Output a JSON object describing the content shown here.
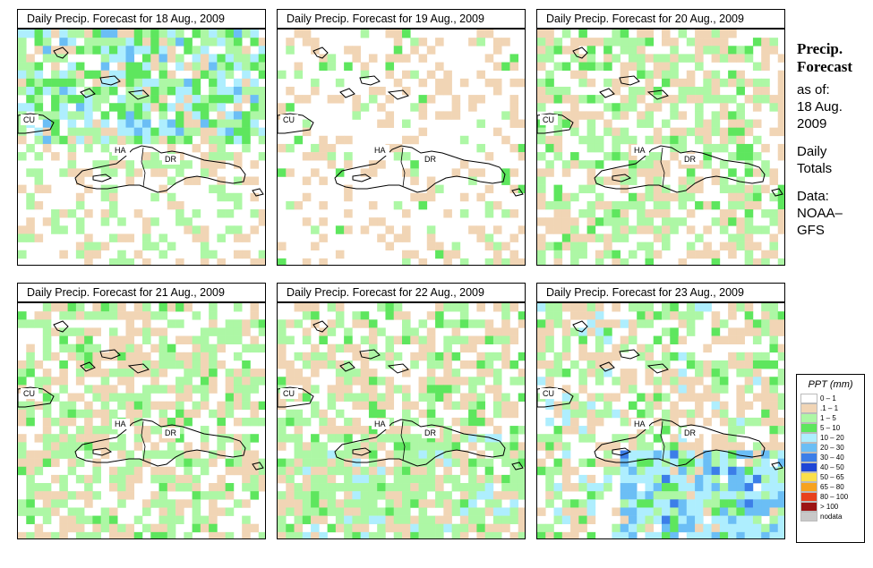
{
  "panels": [
    {
      "title": "Daily Precip. Forecast for  18 Aug., 2009",
      "seed": 18,
      "profile": "wet_north"
    },
    {
      "title": "Daily Precip. Forecast for  19 Aug., 2009",
      "seed": 19,
      "profile": "dry"
    },
    {
      "title": "Daily Precip. Forecast for  20 Aug., 2009",
      "seed": 20,
      "profile": "light"
    },
    {
      "title": "Daily Precip. Forecast for  21 Aug., 2009",
      "seed": 21,
      "profile": "light"
    },
    {
      "title": "Daily Precip. Forecast for  22 Aug., 2009",
      "seed": 22,
      "profile": "widespread"
    },
    {
      "title": "Daily Precip. Forecast for  23 Aug., 2009",
      "seed": 23,
      "profile": "wet_south"
    }
  ],
  "map_labels": {
    "cu": "CU",
    "ha": "HA",
    "dr": "DR"
  },
  "side": {
    "heading1": "Precip.",
    "heading2": "Forecast",
    "asof": "as of:",
    "date1": "18 Aug.",
    "date2": "2009",
    "type1": "Daily",
    "type2": "Totals",
    "data1": "Data:",
    "data2": "NOAA–",
    "data3": "GFS"
  },
  "legend": {
    "title": "PPT (mm)",
    "items": [
      {
        "label": "0 – 1",
        "color": "#ffffff"
      },
      {
        "label": ".1 – 1",
        "color": "#f1d5b5"
      },
      {
        "label": "1 – 5",
        "color": "#adf7a5"
      },
      {
        "label": "5 – 10",
        "color": "#5ee65e"
      },
      {
        "label": "10 – 20",
        "color": "#aeeefe"
      },
      {
        "label": "20 – 30",
        "color": "#6bbef5"
      },
      {
        "label": "30 – 40",
        "color": "#3c7ee8"
      },
      {
        "label": "40 – 50",
        "color": "#1f46d6"
      },
      {
        "label": "50 – 65",
        "color": "#fbe04a"
      },
      {
        "label": "65 – 80",
        "color": "#f7a21e"
      },
      {
        "label": "80 – 100",
        "color": "#e8411d"
      },
      {
        "label": "> 100",
        "color": "#9c1414"
      },
      {
        "label": "nodata",
        "color": "#c8c8c8"
      }
    ]
  }
}
